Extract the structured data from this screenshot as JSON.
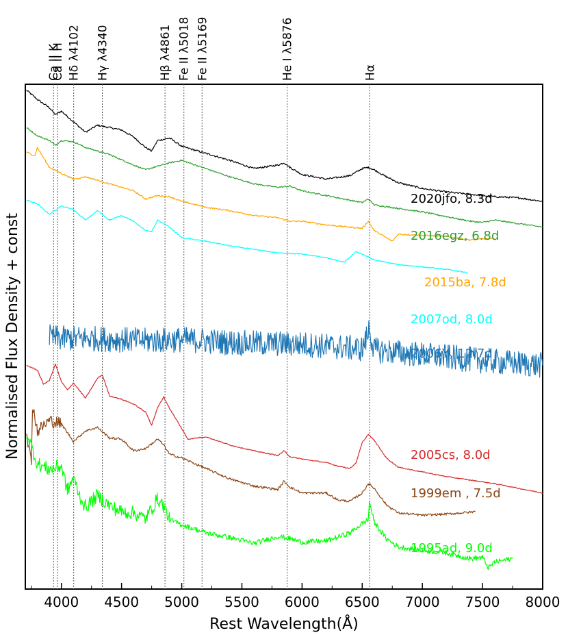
{
  "chart_data": {
    "type": "line",
    "xlabel": "Rest Wavelength(Å)",
    "ylabel": "Normalised Flux Density + const",
    "xlim": [
      3700,
      8000
    ],
    "xticks": [
      "4000",
      "4500",
      "5000",
      "5500",
      "6000",
      "6500",
      "7000",
      "7500",
      "8000"
    ],
    "grid": false,
    "line_identifications": [
      {
        "label": "Ca II K",
        "wavelength": 3934
      },
      {
        "label": "Ca II H",
        "wavelength": 3968
      },
      {
        "label": "Hδ λ4102",
        "wavelength": 4102
      },
      {
        "label": "Hγ λ4340",
        "wavelength": 4340
      },
      {
        "label": "Hβ λ4861",
        "wavelength": 4861
      },
      {
        "label": "Fe II λ5018",
        "wavelength": 5018
      },
      {
        "label": "Fe II λ5169",
        "wavelength": 5169
      },
      {
        "label": "He I λ5876",
        "wavelength": 5876
      },
      {
        "label": "Hα",
        "wavelength": 6563
      }
    ],
    "series": [
      {
        "name": "2020jfo, 8.3d",
        "color": "#000000",
        "x": [
          3710,
          3800,
          3900,
          3950,
          4000,
          4100,
          4200,
          4300,
          4400,
          4500,
          4600,
          4700,
          4750,
          4800,
          4900,
          5000,
          5200,
          5400,
          5600,
          5800,
          5850,
          5900,
          6000,
          6200,
          6400,
          6500,
          6550,
          6600,
          6700,
          6800,
          7000,
          7200,
          7400,
          7600,
          7800,
          8000
        ],
        "y": [
          13.6,
          12.8,
          12.1,
          11.5,
          11.8,
          10.9,
          10.0,
          10.6,
          10.4,
          10.2,
          9.6,
          8.7,
          8.4,
          9.3,
          9.5,
          8.8,
          8.2,
          7.6,
          6.9,
          7.2,
          7.4,
          7.0,
          6.4,
          6.0,
          6.3,
          6.9,
          7.0,
          6.8,
          6.2,
          5.7,
          5.2,
          4.9,
          4.7,
          4.5,
          4.4,
          4.1
        ]
      },
      {
        "name": "2016egz, 6.8d",
        "color": "#2ca02c",
        "x": [
          3710,
          3800,
          3900,
          3950,
          4000,
          4100,
          4200,
          4400,
          4600,
          4700,
          4800,
          4900,
          5000,
          5200,
          5400,
          5600,
          5800,
          5900,
          6000,
          6200,
          6400,
          6500,
          6550,
          6600,
          6800,
          7000,
          7200,
          7400,
          7500,
          7600,
          8000
        ],
        "y": [
          10.4,
          9.7,
          9.3,
          8.9,
          9.3,
          9.2,
          8.7,
          8.1,
          7.2,
          6.8,
          7.1,
          7.4,
          7.6,
          6.9,
          6.2,
          5.6,
          5.3,
          5.4,
          5.0,
          4.6,
          4.2,
          4.0,
          4.3,
          3.8,
          3.5,
          3.2,
          2.8,
          2.4,
          2.3,
          2.5,
          1.9
        ]
      },
      {
        "name": "2015ba, 7.8d",
        "color": "#ffa500",
        "x": [
          3710,
          3780,
          3800,
          3900,
          4000,
          4100,
          4200,
          4400,
          4600,
          4700,
          4800,
          4900,
          5000,
          5200,
          5400,
          5600,
          5800,
          5900,
          6000,
          6200,
          6400,
          6500,
          6550,
          6600,
          6750,
          6800,
          7000,
          7200,
          7400,
          7500,
          7600
        ],
        "y": [
          8.3,
          8.0,
          8.7,
          7.0,
          6.5,
          6.0,
          6.2,
          5.6,
          5.0,
          4.3,
          4.6,
          4.5,
          4.1,
          3.6,
          3.3,
          2.9,
          2.7,
          2.4,
          2.4,
          2.1,
          1.9,
          1.8,
          2.4,
          1.6,
          0.7,
          1.3,
          1.2,
          1.1,
          0.8,
          0.9,
          0.9
        ]
      },
      {
        "name": "2007od, 8.0d",
        "color": "#00ffff",
        "x": [
          3710,
          3800,
          3900,
          4000,
          4100,
          4200,
          4300,
          4400,
          4500,
          4600,
          4700,
          4750,
          4800,
          4900,
          5000,
          5200,
          5400,
          5600,
          5800,
          6000,
          6200,
          6350,
          6450,
          6500,
          6600,
          6800,
          7000,
          7200,
          7380
        ],
        "y": [
          4.2,
          3.9,
          3.0,
          3.7,
          3.4,
          2.5,
          3.3,
          2.5,
          2.9,
          2.4,
          1.6,
          1.5,
          2.5,
          1.9,
          1.0,
          0.7,
          0.3,
          0.0,
          -0.3,
          -0.4,
          -0.7,
          -1.1,
          -0.2,
          -0.4,
          -0.9,
          -1.3,
          -1.5,
          -1.7,
          -2.0
        ]
      },
      {
        "name": "2006Y, 12.7d",
        "color": "#1f77b4",
        "x": [
          3900,
          4000,
          4200,
          4500,
          4700,
          5000,
          5500,
          6000,
          6500,
          6550,
          6560,
          6570,
          6600,
          7000,
          7500,
          8000
        ],
        "y": [
          -7.5,
          -7.6,
          -7.6,
          -7.7,
          -7.8,
          -7.7,
          -8.0,
          -8.1,
          -8.5,
          -7.2,
          -6.5,
          -7.4,
          -8.6,
          -9.0,
          -9.5,
          -9.9
        ]
      },
      {
        "name": "2005cs, 8.0d",
        "color": "#d62728",
        "x": [
          3710,
          3800,
          3850,
          3900,
          3950,
          4000,
          4050,
          4100,
          4200,
          4300,
          4340,
          4400,
          4500,
          4600,
          4700,
          4750,
          4800,
          4850,
          4900,
          5000,
          5050,
          5200,
          5400,
          5600,
          5800,
          5850,
          5900,
          6000,
          6200,
          6300,
          6400,
          6450,
          6500,
          6550,
          6600,
          6700,
          6800,
          7000,
          7200,
          7400,
          7600,
          8000
        ],
        "y": [
          -9.9,
          -10.3,
          -11.5,
          -11.2,
          -9.8,
          -11.3,
          -12.0,
          -11.4,
          -12.7,
          -11.0,
          -10.7,
          -12.5,
          -12.8,
          -13.2,
          -13.9,
          -15.0,
          -13.5,
          -12.6,
          -13.6,
          -15.3,
          -16.2,
          -16.0,
          -16.7,
          -17.2,
          -17.6,
          -17.2,
          -17.7,
          -17.9,
          -18.2,
          -18.5,
          -18.7,
          -18.2,
          -16.5,
          -15.8,
          -16.3,
          -17.8,
          -18.6,
          -19.0,
          -19.4,
          -19.7,
          -20.0,
          -20.8
        ]
      },
      {
        "name": "1999em , 7.5d",
        "color": "#8b4513",
        "x": [
          3710,
          3750,
          3760,
          3800,
          3900,
          4000,
          4100,
          4200,
          4300,
          4400,
          4500,
          4600,
          4700,
          4800,
          4850,
          4900,
          5000,
          5200,
          5400,
          5600,
          5800,
          5850,
          5900,
          6000,
          6200,
          6300,
          6400,
          6500,
          6550,
          6600,
          6700,
          6800,
          7000,
          7200,
          7440
        ],
        "y": [
          -15.5,
          -18.3,
          -13.2,
          -15.5,
          -14.6,
          -14.9,
          -16.4,
          -15.5,
          -15.2,
          -16.1,
          -16.2,
          -17.2,
          -17.0,
          -16.2,
          -16.7,
          -17.5,
          -17.8,
          -18.7,
          -19.6,
          -20.2,
          -20.5,
          -19.8,
          -20.3,
          -20.8,
          -20.8,
          -21.4,
          -21.5,
          -20.8,
          -20.0,
          -20.4,
          -21.8,
          -22.5,
          -22.7,
          -22.6,
          -22.4
        ]
      },
      {
        "name": "1995ad, 9.0d",
        "color": "#00ff00",
        "x": [
          3710,
          3800,
          3900,
          4000,
          4050,
          4100,
          4150,
          4200,
          4300,
          4400,
          4500,
          4600,
          4700,
          4800,
          4850,
          4900,
          5000,
          5200,
          5400,
          5600,
          5800,
          5900,
          6000,
          6200,
          6400,
          6500,
          6550,
          6560,
          6600,
          6700,
          6800,
          7000,
          7200,
          7400,
          7500,
          7550,
          7600,
          7750
        ],
        "y": [
          -15.6,
          -18.3,
          -18.8,
          -18.5,
          -20.6,
          -19.5,
          -21.0,
          -22.0,
          -21.0,
          -21.9,
          -22.4,
          -22.5,
          -23.0,
          -21.3,
          -21.9,
          -23.1,
          -23.5,
          -24.2,
          -24.6,
          -25.1,
          -24.5,
          -24.7,
          -25.0,
          -24.9,
          -24.2,
          -23.4,
          -23.1,
          -21.5,
          -23.3,
          -24.7,
          -25.4,
          -25.7,
          -25.9,
          -26.4,
          -26.3,
          -27.2,
          -26.7,
          -26.4
        ]
      }
    ]
  }
}
